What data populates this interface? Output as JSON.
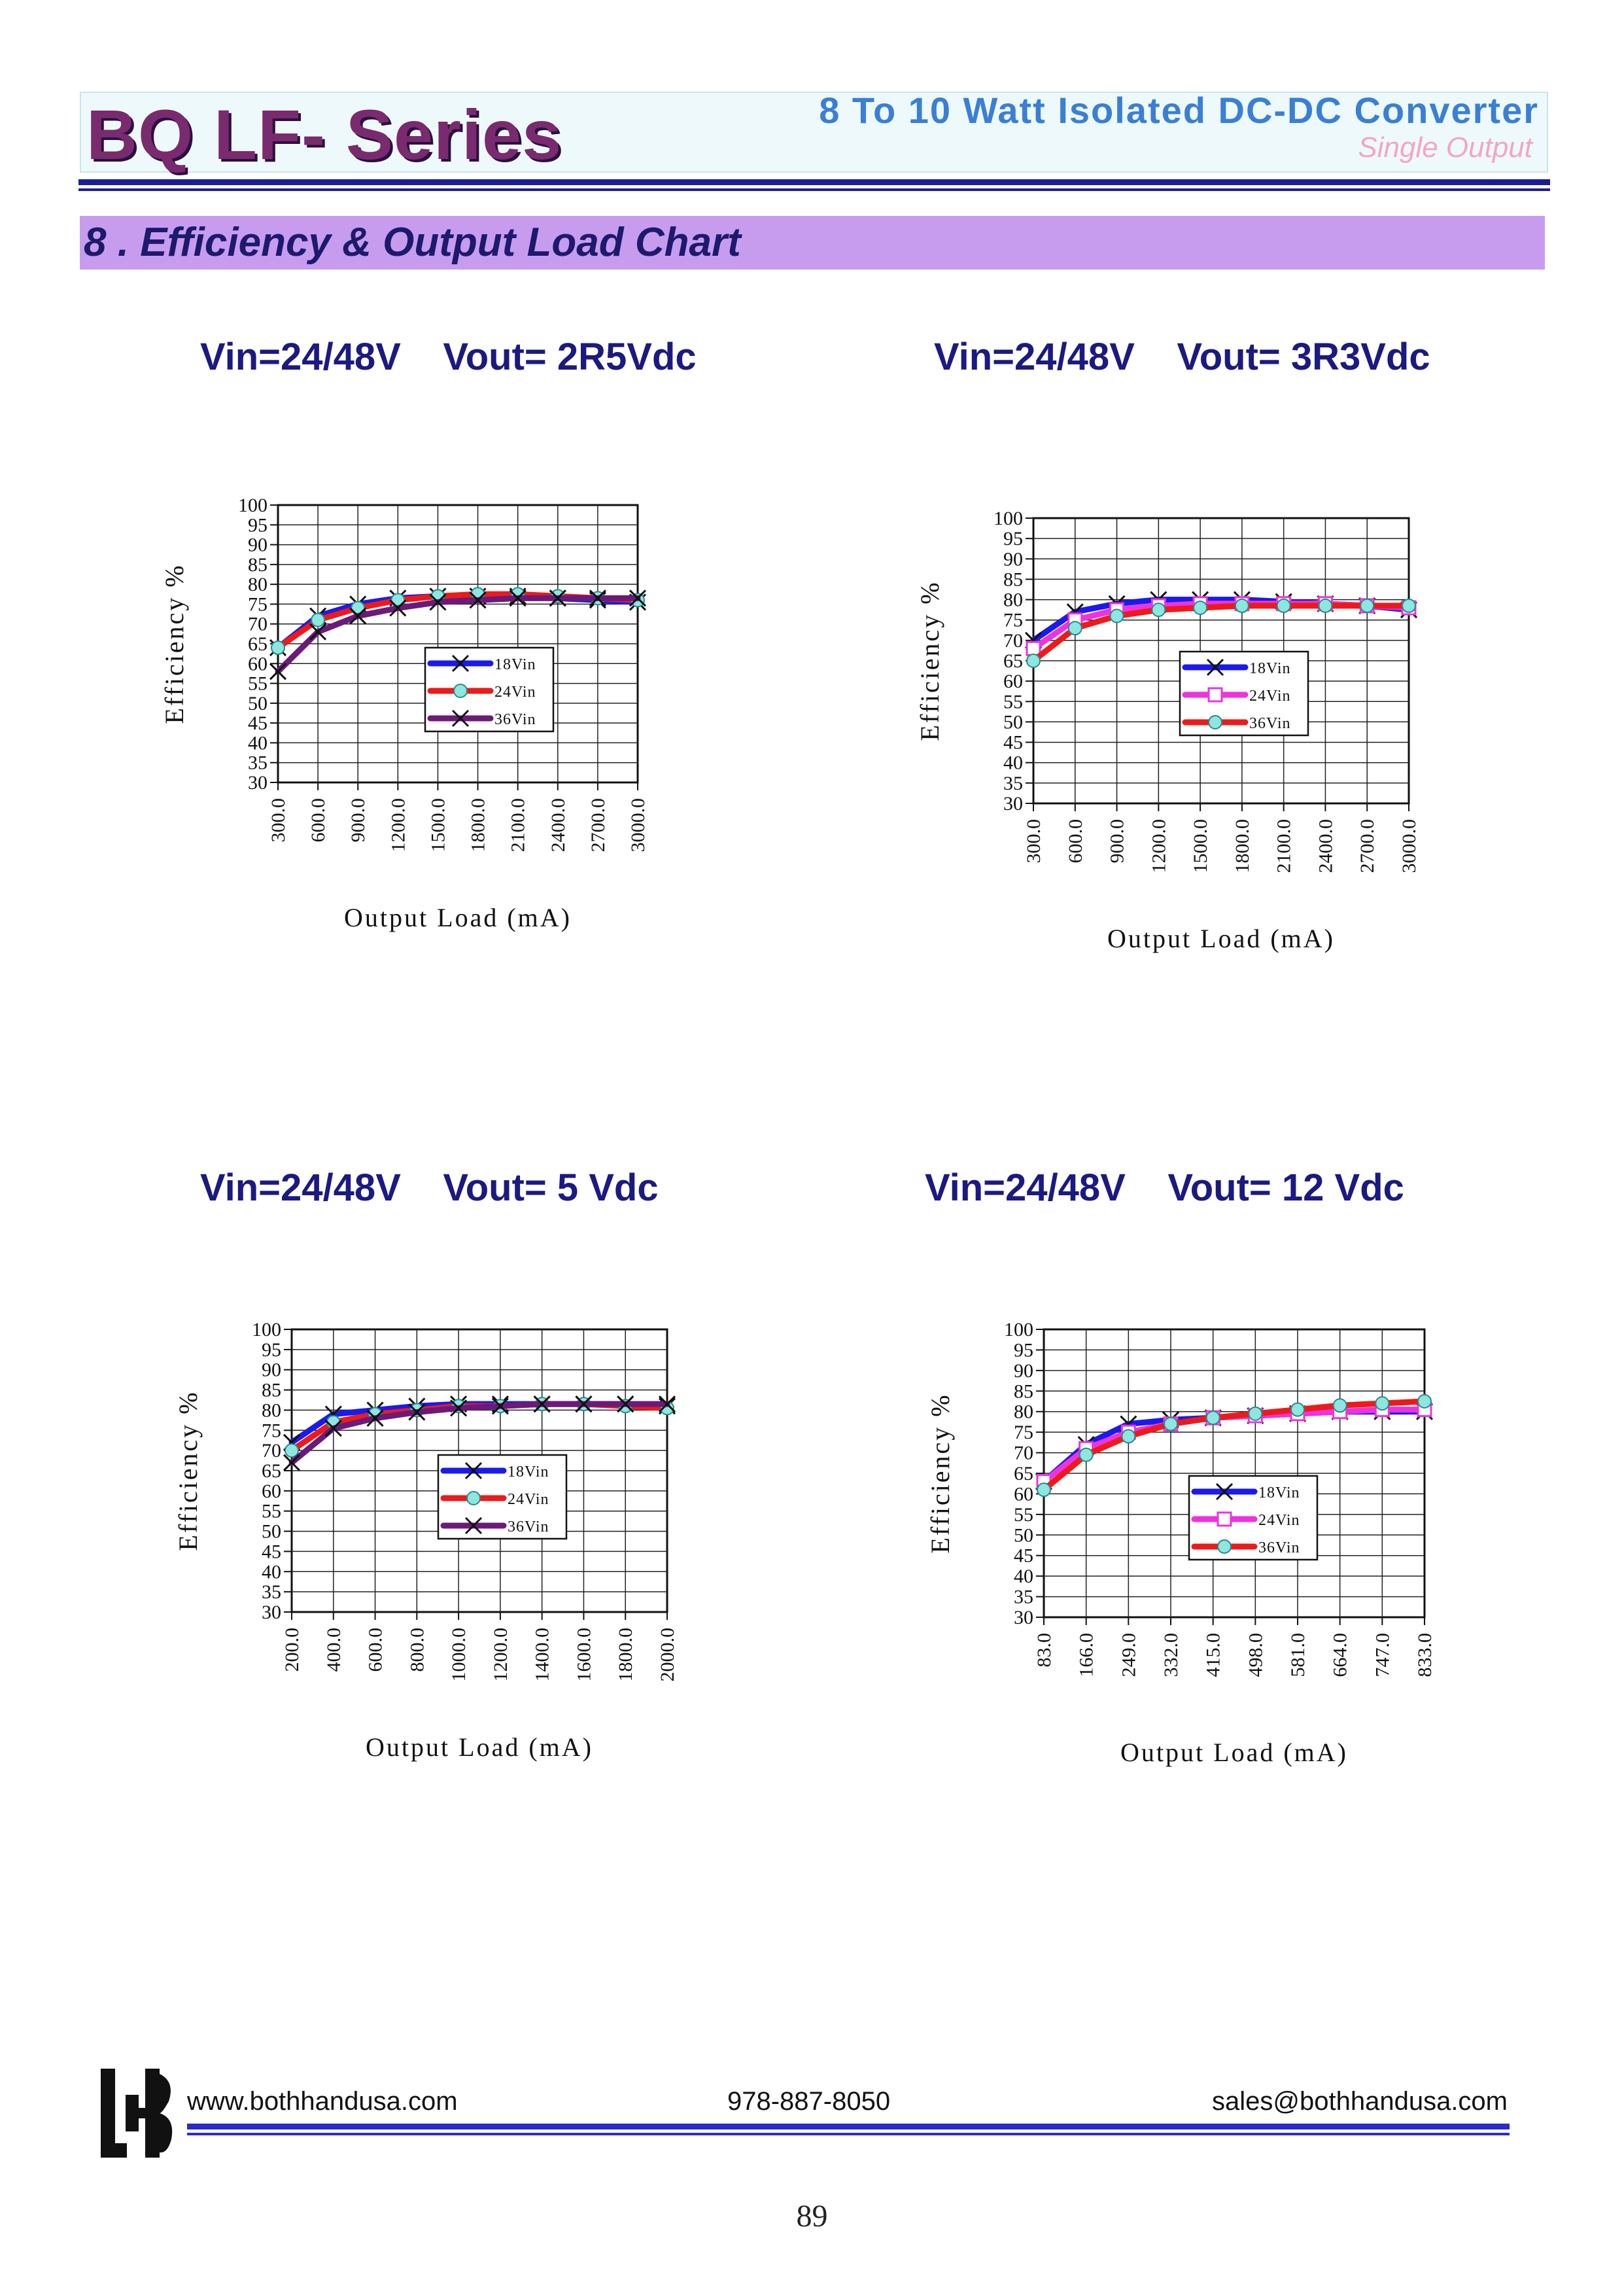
{
  "header": {
    "series_title": "BQ LF- Series",
    "converter_title": "8  To  10  Watt  Isolated  DC-DC  Converter",
    "subtitle": "Single    Output"
  },
  "section": {
    "title": "8 . Efficiency & Output Load Chart"
  },
  "colors": {
    "series_a": "#1a1aee",
    "series_b": "#ee1a1a",
    "series_c": "#6b1a7a",
    "series_pink": "#ee33dd"
  },
  "chart_data": [
    {
      "type": "line",
      "title": "Vin=24/48V    Vout= 2R5Vdc",
      "xlabel": "Output Load (mA)",
      "ylabel": "Efficiency %",
      "ylim": [
        30,
        100
      ],
      "yticks": [
        "100",
        "95",
        "90",
        "85",
        "80",
        "75",
        "70",
        "65",
        "60",
        "55",
        "50",
        "45",
        "40",
        "35",
        "30"
      ],
      "categories": [
        "300.0",
        "600.0",
        "900.0",
        "1200.0",
        "1500.0",
        "1800.0",
        "2100.0",
        "2400.0",
        "2700.0",
        "3000.0"
      ],
      "series": [
        {
          "name": "18Vin",
          "values": [
            64,
            72,
            75,
            76.5,
            77,
            77,
            77,
            76.5,
            76,
            75.5
          ]
        },
        {
          "name": "24Vin",
          "values": [
            64,
            71,
            74,
            76,
            77,
            77.5,
            77.5,
            77,
            76.5,
            76
          ]
        },
        {
          "name": "36Vin",
          "values": [
            58,
            68,
            72,
            74,
            75.5,
            76,
            76.5,
            76.5,
            76.5,
            76.5
          ]
        }
      ]
    },
    {
      "type": "line",
      "title": "Vin=24/48V    Vout= 3R3Vdc",
      "xlabel": "Output Load (mA)",
      "ylabel": "Efficiency %",
      "ylim": [
        30,
        100
      ],
      "yticks": [
        "100",
        "95",
        "90",
        "85",
        "80",
        "75",
        "70",
        "65",
        "60",
        "55",
        "50",
        "45",
        "40",
        "35",
        "30"
      ],
      "categories": [
        "300.0",
        "600.0",
        "900.0",
        "1200.0",
        "1500.0",
        "1800.0",
        "2100.0",
        "2400.0",
        "2700.0",
        "3000.0"
      ],
      "series": [
        {
          "name": "18Vin",
          "values": [
            70,
            77,
            79,
            80,
            80,
            80,
            79.5,
            79,
            78.5,
            77.5
          ]
        },
        {
          "name": "24Vin",
          "values": [
            68,
            75,
            77.5,
            78.5,
            79,
            79,
            79,
            79,
            78.5,
            78
          ]
        },
        {
          "name": "36Vin",
          "values": [
            65,
            73,
            76,
            77.5,
            78,
            78.5,
            78.5,
            78.5,
            78.5,
            78.5
          ]
        }
      ]
    },
    {
      "type": "line",
      "title": "Vin=24/48V    Vout= 5 Vdc",
      "xlabel": "Output Load (mA)",
      "ylabel": "Efficiency %",
      "ylim": [
        30,
        100
      ],
      "yticks": [
        "100",
        "95",
        "90",
        "85",
        "80",
        "75",
        "70",
        "65",
        "60",
        "55",
        "50",
        "45",
        "40",
        "35",
        "30"
      ],
      "categories": [
        "200.0",
        "400.0",
        "600.0",
        "800.0",
        "1000.0",
        "1200.0",
        "1400.0",
        "1600.0",
        "1800.0",
        "2000.0"
      ],
      "series": [
        {
          "name": "18Vin",
          "values": [
            72,
            79,
            80,
            81,
            81.5,
            81.5,
            81.5,
            81.5,
            81.5,
            81
          ]
        },
        {
          "name": "24Vin",
          "values": [
            70,
            77,
            79,
            80,
            81,
            81,
            81.5,
            81.5,
            81,
            80.5
          ]
        },
        {
          "name": "36Vin",
          "values": [
            67,
            75.5,
            78,
            79.5,
            80.5,
            81,
            81.5,
            81.5,
            81.5,
            81.5
          ]
        }
      ]
    },
    {
      "type": "line",
      "title": "Vin=24/48V    Vout= 12 Vdc",
      "xlabel": "Output Load (mA)",
      "ylabel": "Efficiency %",
      "ylim": [
        30,
        100
      ],
      "yticks": [
        "100",
        "95",
        "90",
        "85",
        "80",
        "75",
        "70",
        "65",
        "60",
        "55",
        "50",
        "45",
        "40",
        "35",
        "30"
      ],
      "categories": [
        "83.0",
        "166.0",
        "249.0",
        "332.0",
        "415.0",
        "498.0",
        "581.0",
        "664.0",
        "747.0",
        "833.0"
      ],
      "series": [
        {
          "name": "18Vin",
          "values": [
            63,
            72,
            77,
            78,
            78.5,
            79,
            79.5,
            80,
            80,
            80
          ]
        },
        {
          "name": "24Vin",
          "values": [
            63,
            71,
            75,
            77,
            78.5,
            79,
            79.5,
            80,
            80.5,
            80.5
          ]
        },
        {
          "name": "36Vin",
          "values": [
            61,
            69.5,
            74,
            77,
            78.5,
            79.5,
            80.5,
            81.5,
            82,
            82.5
          ]
        }
      ]
    }
  ],
  "footer": {
    "website": "www.bothhandusa.com",
    "phone": "978-887-8050",
    "email": "sales@bothhandusa.com",
    "page_number": "89"
  }
}
